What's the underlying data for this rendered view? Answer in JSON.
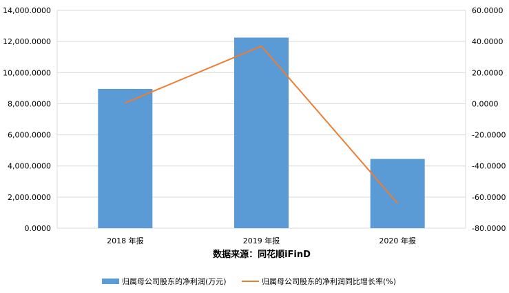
{
  "chart_data": {
    "type": "bar",
    "categories": [
      "2018 年报",
      "2019 年报",
      "2020 年报"
    ],
    "series": [
      {
        "name": "归属母公司股东的净利润(万元)",
        "type": "bar",
        "axis": "left",
        "color": "#5b9bd5",
        "values": [
          8950,
          12250,
          4450
        ]
      },
      {
        "name": "归属母公司股东的净利润同比增长率(%)",
        "type": "line",
        "axis": "right",
        "color": "#ed7d31",
        "values": [
          0.5,
          37.0,
          -64.0
        ]
      }
    ],
    "left_axis": {
      "ylim": [
        0,
        14000
      ],
      "ticks": [
        "0.0000",
        "2,000.0000",
        "4,000.0000",
        "6,000.0000",
        "8,000.0000",
        "10,000.0000",
        "12,000.0000",
        "14,000.0000"
      ]
    },
    "right_axis": {
      "ylim": [
        -80,
        60
      ],
      "ticks": [
        "-80.0000",
        "-60.0000",
        "-40.0000",
        "-20.0000",
        "0.0000",
        "20.0000",
        "40.0000",
        "60.0000"
      ]
    },
    "source_label": "数据来源：同花顺iFinD",
    "grid": true,
    "legend_position": "bottom"
  }
}
